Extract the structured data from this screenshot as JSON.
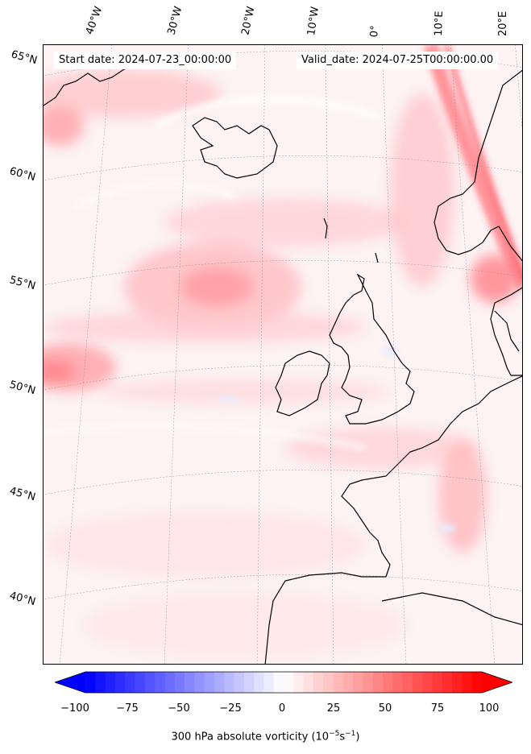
{
  "map": {
    "start_label": "Start date: 2024-07-23_00:00:00",
    "valid_label": "Valid_date: 2024-07-25T00:00:00.00",
    "longitude_labels": [
      "40°W",
      "30°W",
      "20°W",
      "10°W",
      "0°",
      "10°E",
      "20°E"
    ],
    "latitude_labels": [
      "65°N",
      "60°N",
      "55°N",
      "50°N",
      "45°N",
      "40°N"
    ]
  },
  "colorbar": {
    "title_text": "300 hPa absolute vorticity (10",
    "title_exp1": "−5",
    "title_mid": "s",
    "title_exp2": "−1",
    "title_close": ")",
    "ticks": [
      "−100",
      "−75",
      "−50",
      "−25",
      "0",
      "25",
      "50",
      "75",
      "100"
    ],
    "range": [
      -100,
      100
    ],
    "levels": 40,
    "negative_color": "#0000ff",
    "positive_color": "#ff0000",
    "neutral_color": "#ffffff"
  }
}
